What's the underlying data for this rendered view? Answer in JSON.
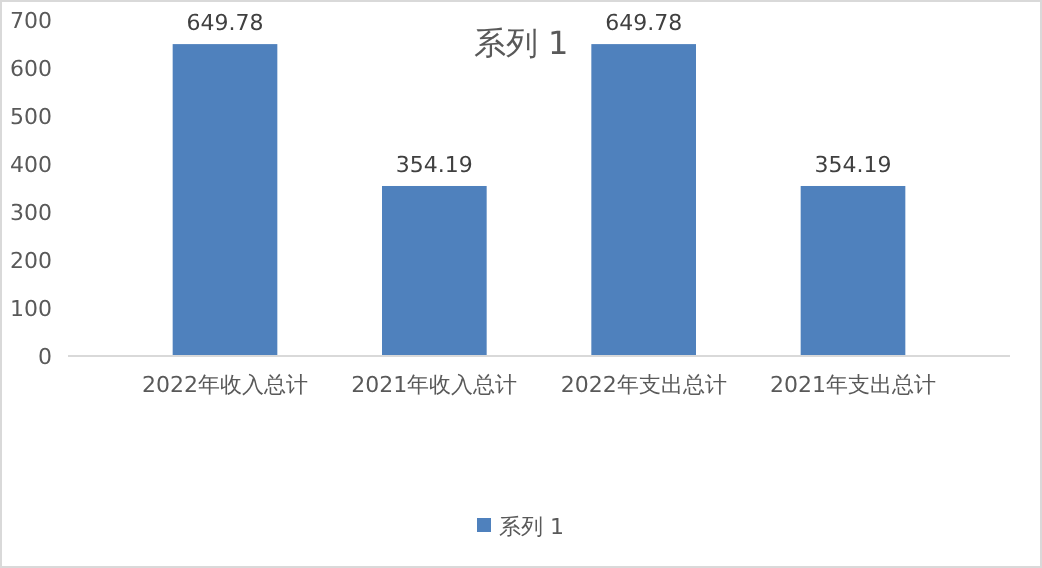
{
  "chart_data": {
    "type": "bar",
    "title": "系列 1",
    "categories": [
      "2022年收入总计",
      "2021年收入总计",
      "2022年支出总计",
      "2021年支出总计"
    ],
    "series": [
      {
        "name": "系列 1",
        "color": "#4f81bd",
        "values": [
          649.78,
          354.19,
          649.78,
          354.19
        ]
      }
    ],
    "ylim": [
      0,
      700
    ],
    "yticks": [
      0,
      100,
      200,
      300,
      400,
      500,
      600,
      700
    ],
    "grid": false,
    "data_labels": true,
    "legend": "bottom"
  }
}
